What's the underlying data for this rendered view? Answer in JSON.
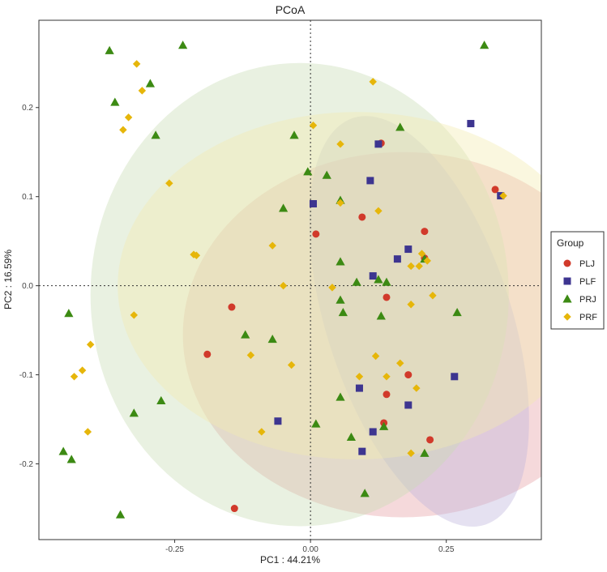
{
  "chart_data": {
    "type": "scatter",
    "title": "PCoA",
    "xlabel": "PC1 : 44.21%",
    "ylabel": "PC2 : 16.59%",
    "xlim": [
      -0.5,
      0.425
    ],
    "ylim": [
      -0.285,
      0.298
    ],
    "x_ticks": [
      -0.25,
      0.0,
      0.25
    ],
    "x_tick_labels": [
      "-0.25",
      "0.00",
      "0.25"
    ],
    "y_ticks": [
      -0.2,
      -0.1,
      0.0,
      0.1,
      0.2
    ],
    "y_tick_labels": [
      "-0.2",
      "-0.1",
      "0.0",
      "0.1",
      "0.2"
    ],
    "grid": false,
    "reference_lines": {
      "x": 0,
      "y": 0,
      "style": "dotted"
    },
    "legend": {
      "title": "Group",
      "position": "right"
    },
    "series": [
      {
        "name": "PLJ",
        "marker": "circle",
        "color": "#d13a2b",
        "ellipse_color": "#e7a0a6",
        "ellipse": {
          "cx": 0.17,
          "cy": -0.055,
          "rx": 0.405,
          "ry": 0.205,
          "angle_deg": 0
        },
        "points": [
          [
            0.13,
            0.16
          ],
          [
            0.34,
            0.108
          ],
          [
            0.095,
            0.077
          ],
          [
            0.21,
            0.061
          ],
          [
            0.01,
            0.058
          ],
          [
            0.21,
            0.031
          ],
          [
            0.14,
            -0.013
          ],
          [
            -0.145,
            -0.024
          ],
          [
            -0.19,
            -0.077
          ],
          [
            0.18,
            -0.1
          ],
          [
            0.14,
            -0.122
          ],
          [
            0.135,
            -0.154
          ],
          [
            0.22,
            -0.173
          ],
          [
            -0.14,
            -0.25
          ]
        ]
      },
      {
        "name": "PLF",
        "marker": "square",
        "color": "#3d3590",
        "ellipse_color": "#bdb3dc",
        "ellipse": {
          "cx": 0.2,
          "cy": -0.04,
          "rx": 0.17,
          "ry": 0.24,
          "angle_deg": -18
        },
        "points": [
          [
            0.295,
            0.182
          ],
          [
            0.125,
            0.159
          ],
          [
            0.35,
            0.101
          ],
          [
            0.11,
            0.118
          ],
          [
            0.005,
            0.092
          ],
          [
            0.18,
            0.041
          ],
          [
            0.16,
            0.03
          ],
          [
            0.115,
            0.011
          ],
          [
            0.265,
            -0.102
          ],
          [
            0.09,
            -0.115
          ],
          [
            0.18,
            -0.134
          ],
          [
            0.115,
            -0.164
          ],
          [
            -0.06,
            -0.152
          ],
          [
            0.095,
            -0.186
          ]
        ]
      },
      {
        "name": "PRJ",
        "marker": "triangle",
        "color": "#3c8a13",
        "ellipse_color": "#c7dcb5",
        "ellipse": {
          "cx": -0.02,
          "cy": -0.01,
          "rx": 0.385,
          "ry": 0.26,
          "angle_deg": 0
        },
        "points": [
          [
            -0.37,
            0.264
          ],
          [
            -0.235,
            0.27
          ],
          [
            0.32,
            0.27
          ],
          [
            -0.295,
            0.227
          ],
          [
            -0.36,
            0.206
          ],
          [
            -0.285,
            0.169
          ],
          [
            -0.03,
            0.169
          ],
          [
            0.165,
            0.178
          ],
          [
            -0.005,
            0.128
          ],
          [
            0.03,
            0.124
          ],
          [
            0.055,
            0.096
          ],
          [
            -0.05,
            0.087
          ],
          [
            0.055,
            0.027
          ],
          [
            0.21,
            0.03
          ],
          [
            0.125,
            0.007
          ],
          [
            0.085,
            0.004
          ],
          [
            0.14,
            0.004
          ],
          [
            0.055,
            -0.016
          ],
          [
            0.06,
            -0.03
          ],
          [
            0.27,
            -0.03
          ],
          [
            0.13,
            -0.034
          ],
          [
            -0.445,
            -0.031
          ],
          [
            -0.12,
            -0.055
          ],
          [
            -0.07,
            -0.06
          ],
          [
            0.055,
            -0.125
          ],
          [
            -0.275,
            -0.129
          ],
          [
            -0.325,
            -0.143
          ],
          [
            0.01,
            -0.155
          ],
          [
            0.135,
            -0.158
          ],
          [
            0.075,
            -0.17
          ],
          [
            0.21,
            -0.188
          ],
          [
            -0.455,
            -0.186
          ],
          [
            -0.44,
            -0.195
          ],
          [
            0.1,
            -0.233
          ],
          [
            -0.35,
            -0.257
          ]
        ]
      },
      {
        "name": "PRF",
        "marker": "diamond",
        "color": "#e6b60a",
        "ellipse_color": "#f2eab0",
        "ellipse": {
          "cx": 0.085,
          "cy": 0.0,
          "rx": 0.44,
          "ry": 0.195,
          "angle_deg": 0
        },
        "points": [
          [
            -0.32,
            0.249
          ],
          [
            -0.31,
            0.219
          ],
          [
            -0.335,
            0.189
          ],
          [
            -0.345,
            0.175
          ],
          [
            0.115,
            0.229
          ],
          [
            0.005,
            0.18
          ],
          [
            0.055,
            0.159
          ],
          [
            -0.26,
            0.115
          ],
          [
            0.055,
            0.093
          ],
          [
            0.355,
            0.101
          ],
          [
            0.125,
            0.084
          ],
          [
            -0.07,
            0.045
          ],
          [
            -0.215,
            0.035
          ],
          [
            -0.21,
            0.034
          ],
          [
            0.205,
            0.036
          ],
          [
            0.185,
            0.022
          ],
          [
            0.2,
            0.022
          ],
          [
            0.215,
            0.028
          ],
          [
            -0.05,
            0.0
          ],
          [
            0.04,
            -0.002
          ],
          [
            0.225,
            -0.011
          ],
          [
            -0.325,
            -0.033
          ],
          [
            0.185,
            -0.021
          ],
          [
            -0.405,
            -0.066
          ],
          [
            -0.11,
            -0.078
          ],
          [
            0.12,
            -0.079
          ],
          [
            -0.035,
            -0.089
          ],
          [
            0.165,
            -0.087
          ],
          [
            -0.42,
            -0.095
          ],
          [
            -0.435,
            -0.102
          ],
          [
            0.09,
            -0.102
          ],
          [
            0.14,
            -0.102
          ],
          [
            0.195,
            -0.115
          ],
          [
            -0.09,
            -0.164
          ],
          [
            -0.41,
            -0.164
          ],
          [
            0.185,
            -0.188
          ]
        ]
      }
    ]
  }
}
